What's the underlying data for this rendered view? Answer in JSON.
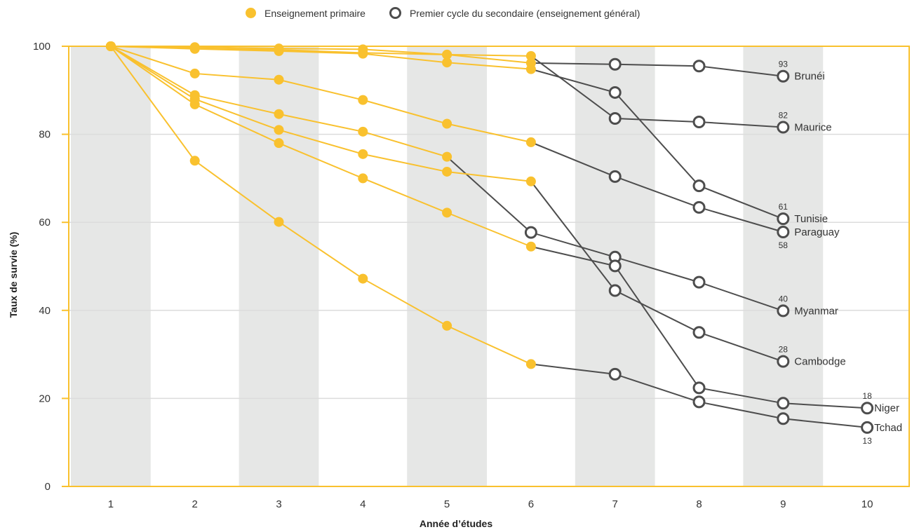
{
  "legend": {
    "primary_label": "Enseignement primaire",
    "secondary_label": "Premier cycle du secondaire (enseignement général)"
  },
  "colors": {
    "primary": "#F9C12E",
    "secondary": "#4D4D4D",
    "band": "#E6E7E6",
    "grid": "#DCDCDC",
    "frame": "#F9C12E"
  },
  "chart_data": {
    "type": "line",
    "xlabel": "Année d’études",
    "ylabel": "Taux de survie (%)",
    "x_ticks": [
      1,
      2,
      3,
      4,
      5,
      6,
      7,
      8,
      9,
      10
    ],
    "y_ticks": [
      0,
      20,
      40,
      60,
      80,
      100
    ],
    "xlim": [
      0.5,
      10.5
    ],
    "ylim": [
      0,
      100
    ],
    "shaded_years": [
      1,
      3,
      5,
      7,
      9
    ],
    "grid": "horizontal",
    "legend_position": "top-center",
    "series": [
      {
        "name": "Brunéi",
        "end_label": "93",
        "primary": [
          [
            1,
            100
          ],
          [
            2,
            99.5
          ],
          [
            3,
            99.2
          ],
          [
            4,
            98.5
          ],
          [
            5,
            98.1
          ],
          [
            6,
            96.2
          ]
        ],
        "secondary": [
          [
            7,
            95.9
          ],
          [
            8,
            95.5
          ],
          [
            9,
            93.2
          ]
        ]
      },
      {
        "name": "Maurice",
        "end_label": "82",
        "primary": [
          [
            1,
            100
          ],
          [
            2,
            99.8
          ],
          [
            3,
            99.5
          ],
          [
            4,
            99.3
          ],
          [
            5,
            98.1
          ],
          [
            6,
            97.8
          ]
        ],
        "secondary": [
          [
            7,
            83.6
          ],
          [
            8,
            82.8
          ],
          [
            9,
            81.6
          ]
        ]
      },
      {
        "name": "Tunisie",
        "end_label": "61",
        "primary": [
          [
            1,
            100
          ],
          [
            2,
            99.4
          ],
          [
            3,
            98.9
          ],
          [
            4,
            98.3
          ],
          [
            5,
            96.3
          ],
          [
            6,
            94.8
          ]
        ],
        "secondary": [
          [
            7,
            89.5
          ],
          [
            8,
            68.3
          ],
          [
            9,
            60.8
          ]
        ]
      },
      {
        "name": "Paraguay",
        "end_label": "58",
        "primary": [
          [
            1,
            100
          ],
          [
            2,
            93.8
          ],
          [
            3,
            92.4
          ],
          [
            4,
            87.8
          ],
          [
            5,
            82.4
          ],
          [
            6,
            78.2
          ]
        ],
        "secondary": [
          [
            7,
            70.4
          ],
          [
            8,
            63.4
          ],
          [
            9,
            57.8
          ]
        ]
      },
      {
        "name": "Myanmar",
        "end_label": "40",
        "primary": [
          [
            1,
            100
          ],
          [
            2,
            88.9
          ],
          [
            3,
            84.6
          ],
          [
            4,
            80.6
          ],
          [
            5,
            74.9
          ]
        ],
        "secondary": [
          [
            6,
            57.7
          ],
          [
            7,
            52.1
          ],
          [
            8,
            46.4
          ],
          [
            9,
            39.9
          ]
        ]
      },
      {
        "name": "Cambodge",
        "end_label": "28",
        "primary": [
          [
            1,
            100
          ],
          [
            2,
            88
          ],
          [
            3,
            81
          ],
          [
            4,
            75.5
          ],
          [
            5,
            71.5
          ],
          [
            6,
            69.3
          ]
        ],
        "secondary": [
          [
            7,
            44.5
          ],
          [
            8,
            35
          ],
          [
            9,
            28.4
          ]
        ]
      },
      {
        "name": "Niger",
        "end_label": "18",
        "primary": [
          [
            1,
            100
          ],
          [
            2,
            86.8
          ],
          [
            3,
            78
          ],
          [
            4,
            70
          ],
          [
            5,
            62.2
          ],
          [
            6,
            54.5
          ]
        ],
        "secondary": [
          [
            7,
            50.1
          ],
          [
            8,
            22.4
          ],
          [
            9,
            18.9
          ],
          [
            10,
            17.8
          ]
        ]
      },
      {
        "name": "Tchad",
        "end_label": "13",
        "primary": [
          [
            1,
            100
          ],
          [
            2,
            74
          ],
          [
            3,
            60.1
          ],
          [
            4,
            47.2
          ],
          [
            5,
            36.5
          ],
          [
            6,
            27.8
          ]
        ],
        "secondary": [
          [
            7,
            25.5
          ],
          [
            8,
            19.2
          ],
          [
            9,
            15.4
          ],
          [
            10,
            13.4
          ]
        ]
      }
    ]
  }
}
